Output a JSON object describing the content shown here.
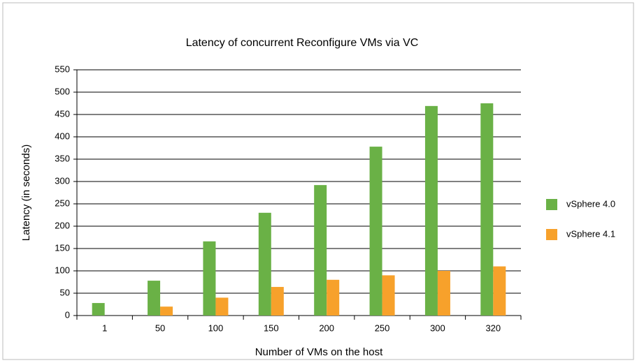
{
  "chart_data": {
    "type": "bar",
    "title": "Latency of concurrent Reconfigure VMs via VC",
    "x_label": "Number of VMs on the host",
    "y_label": "Latency (in seconds)",
    "categories": [
      "1",
      "50",
      "100",
      "150",
      "200",
      "250",
      "300",
      "320"
    ],
    "series": [
      {
        "name": "vSphere 4.0",
        "color": "#6ab146",
        "values": [
          28,
          78,
          166,
          230,
          292,
          378,
          469,
          475
        ]
      },
      {
        "name": "vSphere 4.1",
        "color": "#f7a12b",
        "values": [
          null,
          20,
          40,
          64,
          80,
          90,
          100,
          110
        ]
      }
    ],
    "ylim": [
      0,
      550
    ],
    "yticks": [
      0,
      50,
      100,
      150,
      200,
      250,
      300,
      350,
      400,
      450,
      500,
      550
    ],
    "grid": true,
    "legend": "right"
  }
}
